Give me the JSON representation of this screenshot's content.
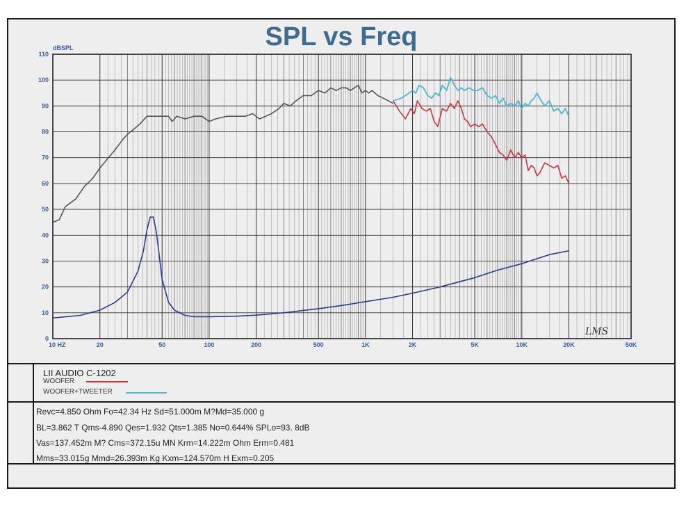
{
  "chart_data": {
    "type": "line",
    "title": "SPL vs Freq",
    "ylabel": "dBSPL",
    "xscale": "log",
    "xlim": [
      10,
      50000
    ],
    "ylim": [
      0,
      110
    ],
    "grid": true,
    "yticks": [
      0,
      10,
      20,
      30,
      40,
      50,
      60,
      70,
      80,
      90,
      100,
      110
    ],
    "xticks": [
      {
        "value": 10,
        "label": "10  HZ"
      },
      {
        "value": 20,
        "label": "20"
      },
      {
        "value": 50,
        "label": "50"
      },
      {
        "value": 100,
        "label": "100"
      },
      {
        "value": 200,
        "label": "200"
      },
      {
        "value": 500,
        "label": "500"
      },
      {
        "value": 1000,
        "label": "1K"
      },
      {
        "value": 2000,
        "label": "2K"
      },
      {
        "value": 5000,
        "label": "5K"
      },
      {
        "value": 10000,
        "label": "10K"
      },
      {
        "value": 20000,
        "label": "20K"
      },
      {
        "value": 50000,
        "label": "50K"
      }
    ],
    "signature": "LMS",
    "series": [
      {
        "name": "",
        "color": "#555555",
        "points": [
          [
            10,
            45
          ],
          [
            11,
            46
          ],
          [
            12,
            51
          ],
          [
            14,
            54
          ],
          [
            16,
            59
          ],
          [
            18,
            62
          ],
          [
            20,
            66
          ],
          [
            22,
            69
          ],
          [
            25,
            73
          ],
          [
            28,
            77
          ],
          [
            30,
            79
          ],
          [
            33,
            81
          ],
          [
            36,
            83
          ],
          [
            40,
            86
          ],
          [
            45,
            86
          ],
          [
            50,
            86
          ],
          [
            55,
            86
          ],
          [
            58,
            84
          ],
          [
            62,
            86
          ],
          [
            70,
            85
          ],
          [
            80,
            86
          ],
          [
            90,
            86
          ],
          [
            100,
            84
          ],
          [
            110,
            85
          ],
          [
            130,
            86
          ],
          [
            150,
            86
          ],
          [
            170,
            86
          ],
          [
            190,
            87
          ],
          [
            210,
            85
          ],
          [
            230,
            86
          ],
          [
            250,
            87
          ],
          [
            280,
            89
          ],
          [
            300,
            91
          ],
          [
            330,
            90
          ],
          [
            360,
            92
          ],
          [
            400,
            94
          ],
          [
            450,
            94
          ],
          [
            500,
            96
          ],
          [
            550,
            95
          ],
          [
            600,
            97
          ],
          [
            650,
            96
          ],
          [
            700,
            97
          ],
          [
            750,
            97
          ],
          [
            800,
            96
          ],
          [
            850,
            97
          ],
          [
            900,
            98
          ],
          [
            950,
            95
          ],
          [
            1000,
            96
          ],
          [
            1050,
            95
          ],
          [
            1100,
            96
          ],
          [
            1200,
            94
          ],
          [
            1300,
            93
          ],
          [
            1400,
            92
          ],
          [
            1500,
            91
          ]
        ]
      },
      {
        "name": "WOOFER",
        "color": "#cc3340",
        "points": [
          [
            1500,
            92
          ],
          [
            1650,
            88
          ],
          [
            1800,
            85
          ],
          [
            1950,
            89
          ],
          [
            2050,
            87
          ],
          [
            2150,
            92
          ],
          [
            2300,
            89
          ],
          [
            2450,
            88
          ],
          [
            2600,
            89
          ],
          [
            2750,
            84
          ],
          [
            2900,
            82
          ],
          [
            3100,
            89
          ],
          [
            3300,
            88
          ],
          [
            3500,
            91
          ],
          [
            3700,
            89
          ],
          [
            3900,
            92
          ],
          [
            4100,
            89
          ],
          [
            4300,
            85
          ],
          [
            4500,
            84
          ],
          [
            4700,
            82
          ],
          [
            5000,
            83
          ],
          [
            5300,
            82
          ],
          [
            5600,
            83
          ],
          [
            6000,
            80
          ],
          [
            6400,
            78
          ],
          [
            6800,
            75
          ],
          [
            7200,
            72
          ],
          [
            7600,
            71
          ],
          [
            8000,
            69
          ],
          [
            8500,
            73
          ],
          [
            9000,
            70
          ],
          [
            9500,
            72
          ],
          [
            10000,
            70
          ],
          [
            10500,
            71
          ],
          [
            11000,
            65
          ],
          [
            11500,
            67
          ],
          [
            12000,
            66
          ],
          [
            12500,
            63
          ],
          [
            13000,
            64
          ],
          [
            14000,
            68
          ],
          [
            15000,
            67
          ],
          [
            16000,
            66
          ],
          [
            17000,
            67
          ],
          [
            18000,
            62
          ],
          [
            19000,
            63
          ],
          [
            20000,
            60
          ]
        ]
      },
      {
        "name": "WOOFER+TWEETER",
        "color": "#5ab8cc",
        "points": [
          [
            1500,
            92
          ],
          [
            1700,
            93
          ],
          [
            1900,
            95
          ],
          [
            2000,
            96
          ],
          [
            2100,
            95
          ],
          [
            2200,
            98
          ],
          [
            2350,
            97
          ],
          [
            2500,
            94
          ],
          [
            2650,
            93
          ],
          [
            2800,
            95
          ],
          [
            2950,
            94
          ],
          [
            3100,
            98
          ],
          [
            3300,
            96
          ],
          [
            3500,
            101
          ],
          [
            3700,
            98
          ],
          [
            3900,
            96
          ],
          [
            4100,
            97
          ],
          [
            4300,
            96
          ],
          [
            4600,
            97
          ],
          [
            4900,
            96
          ],
          [
            5200,
            96
          ],
          [
            5600,
            97
          ],
          [
            6000,
            94
          ],
          [
            6400,
            93
          ],
          [
            6800,
            94
          ],
          [
            7200,
            91
          ],
          [
            7600,
            93
          ],
          [
            8000,
            90
          ],
          [
            8500,
            91
          ],
          [
            9000,
            90
          ],
          [
            9500,
            92
          ],
          [
            10000,
            89
          ],
          [
            10500,
            91
          ],
          [
            11000,
            90
          ],
          [
            11500,
            92
          ],
          [
            12000,
            93
          ],
          [
            12500,
            95
          ],
          [
            13000,
            93
          ],
          [
            14000,
            90
          ],
          [
            15000,
            92
          ],
          [
            16000,
            88
          ],
          [
            17000,
            89
          ],
          [
            18000,
            87
          ],
          [
            19000,
            89
          ],
          [
            20000,
            86
          ]
        ]
      },
      {
        "name": "",
        "color": "#2a3a8c",
        "points": [
          [
            10,
            8
          ],
          [
            15,
            9
          ],
          [
            20,
            11
          ],
          [
            25,
            14
          ],
          [
            30,
            18
          ],
          [
            35,
            26
          ],
          [
            38,
            34
          ],
          [
            40,
            42
          ],
          [
            42,
            47
          ],
          [
            44,
            47
          ],
          [
            46,
            41
          ],
          [
            48,
            32
          ],
          [
            50,
            23
          ],
          [
            55,
            14
          ],
          [
            60,
            11
          ],
          [
            70,
            9
          ],
          [
            80,
            8.5
          ],
          [
            100,
            8.5
          ],
          [
            150,
            8.7
          ],
          [
            200,
            9.1
          ],
          [
            300,
            10
          ],
          [
            500,
            11.6
          ],
          [
            700,
            12.8
          ],
          [
            1000,
            14.3
          ],
          [
            1500,
            16
          ],
          [
            2000,
            17.6
          ],
          [
            3000,
            20
          ],
          [
            5000,
            23.6
          ],
          [
            7000,
            26.5
          ],
          [
            10000,
            29
          ],
          [
            15000,
            32.5
          ],
          [
            20000,
            34
          ]
        ]
      }
    ]
  },
  "info": {
    "model": "LII AUDIO C-1202",
    "legend": [
      {
        "label": "WOOFER",
        "color": "#cc3340"
      },
      {
        "label": "WOOFER+TWEETER",
        "color": "#5ab8cc"
      }
    ],
    "params": [
      "Revc=4.850 Ohm  Fo=42.34 Hz  Sd=51.000m M?Md=35.000 g",
      "BL=3.862 T Qms-4.890  Qes=1.932  Qts=1.385  No=0.644%  SPLo=93. 8dB",
      "Vas=137.452m M? Cms=372.15u MN Krm=14.222m Ohm Erm=0.481",
      "Mms=33.015g  Mmd=26.393m Kg  Kxm=124.570m H  Exm=0.205"
    ]
  }
}
